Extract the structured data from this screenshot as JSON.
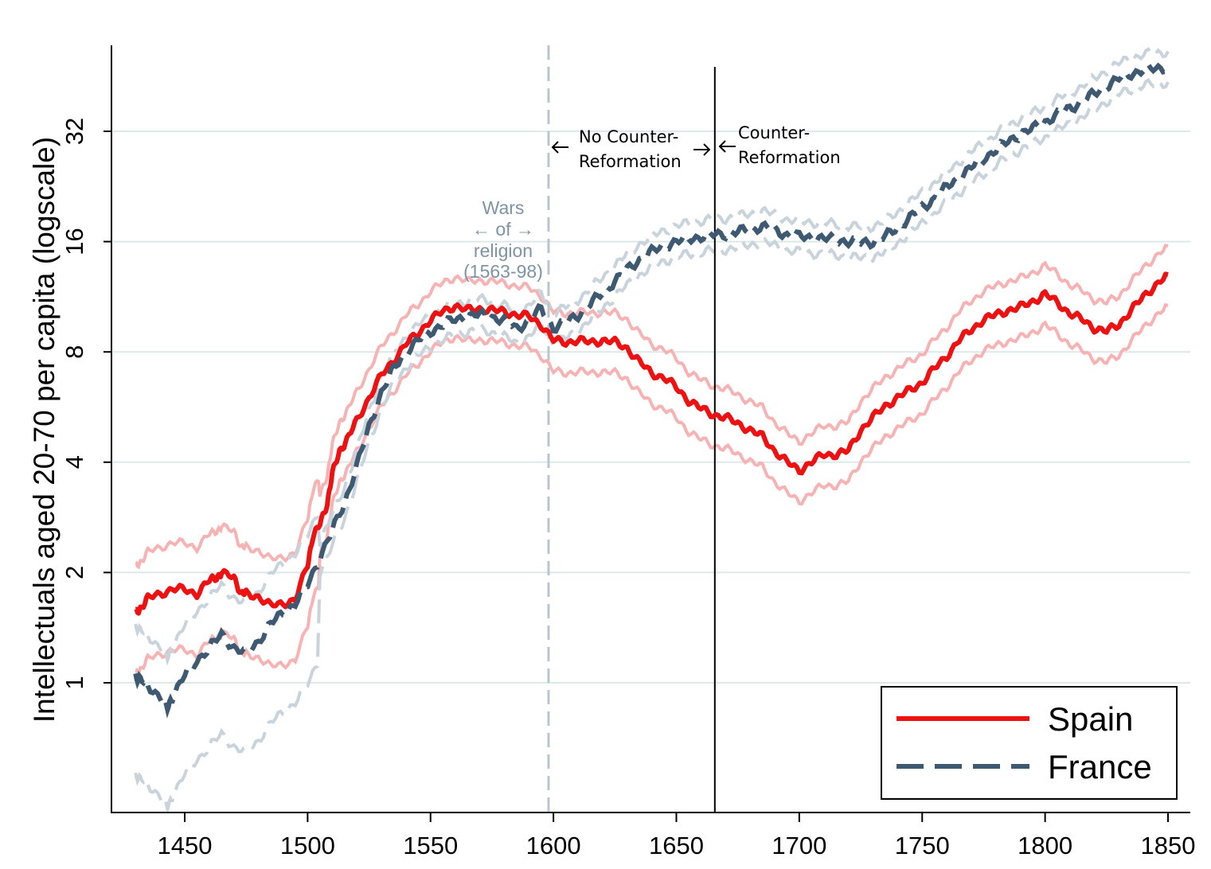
{
  "chart_data": {
    "type": "line",
    "title": "",
    "xlabel": "",
    "ylabel": "Intellectuals aged 20-70 per capita (logscale)",
    "y_scale": "log2",
    "xlim": [
      1420,
      1860
    ],
    "ylim": [
      0.4,
      56
    ],
    "x_ticks": [
      1450,
      1500,
      1550,
      1600,
      1650,
      1700,
      1750,
      1800,
      1850
    ],
    "x_tick_labels": [
      "1450",
      "1500",
      "1550",
      "1600",
      "1650",
      "1700",
      "1750",
      "1800",
      "1850"
    ],
    "y_ticks": [
      1,
      2,
      4,
      8,
      16,
      32
    ],
    "y_tick_labels": [
      "1",
      "2",
      "4",
      "8",
      "16",
      "32"
    ],
    "grid": true,
    "legend_position": "bottom-right",
    "colors": {
      "spain": "#ee1111",
      "spain_ci": "#f7b3b3",
      "france": "#3e5a72",
      "france_ci": "#c9d3dc",
      "wars_line": "#b9c5cf",
      "grid": "#dde8e8"
    },
    "series": [
      {
        "name": "Spain",
        "style": "solid",
        "x": [
          1430,
          1432,
          1435,
          1440,
          1445,
          1450,
          1455,
          1460,
          1463,
          1465,
          1470,
          1473,
          1475,
          1480,
          1485,
          1490,
          1495,
          1500,
          1502,
          1505,
          1508,
          1510,
          1513,
          1516,
          1520,
          1525,
          1530,
          1535,
          1540,
          1545,
          1550,
          1555,
          1560,
          1565,
          1570,
          1575,
          1580,
          1585,
          1590,
          1595,
          1600,
          1605,
          1610,
          1615,
          1620,
          1625,
          1630,
          1635,
          1640,
          1645,
          1650,
          1655,
          1660,
          1665,
          1670,
          1675,
          1680,
          1685,
          1690,
          1695,
          1700,
          1705,
          1710,
          1715,
          1720,
          1725,
          1730,
          1735,
          1740,
          1745,
          1750,
          1755,
          1760,
          1765,
          1770,
          1775,
          1780,
          1785,
          1790,
          1795,
          1800,
          1805,
          1810,
          1815,
          1820,
          1825,
          1830,
          1835,
          1840,
          1845,
          1850
        ],
        "values": [
          1.55,
          1.6,
          1.7,
          1.75,
          1.8,
          1.8,
          1.75,
          1.9,
          1.95,
          1.98,
          1.95,
          1.75,
          1.75,
          1.72,
          1.62,
          1.65,
          1.68,
          2.1,
          2.5,
          2.7,
          3.1,
          3.7,
          4.3,
          4.6,
          5.2,
          6.0,
          6.9,
          7.6,
          8.4,
          9.0,
          9.8,
          10.3,
          10.7,
          10.4,
          10.5,
          10.4,
          10.3,
          10.1,
          10.0,
          9.5,
          8.6,
          8.5,
          8.6,
          8.5,
          8.6,
          8.5,
          8.2,
          7.5,
          7.0,
          6.8,
          6.4,
          5.9,
          5.6,
          5.4,
          5.3,
          5.1,
          4.9,
          4.7,
          4.3,
          4.0,
          3.8,
          4.0,
          4.2,
          4.2,
          4.3,
          4.9,
          5.3,
          5.7,
          6.0,
          6.3,
          6.6,
          7.2,
          7.8,
          8.6,
          9.2,
          9.8,
          10.1,
          10.4,
          10.6,
          11.0,
          11.5,
          10.9,
          10.2,
          9.8,
          9.3,
          9.1,
          9.5,
          10.4,
          11.3,
          12.2,
          13.0
        ]
      },
      {
        "name": "France",
        "style": "dashed",
        "x": [
          1430,
          1432,
          1435,
          1440,
          1443,
          1445,
          1450,
          1455,
          1460,
          1465,
          1470,
          1475,
          1480,
          1485,
          1490,
          1495,
          1500,
          1505,
          1510,
          1515,
          1520,
          1525,
          1530,
          1535,
          1540,
          1545,
          1550,
          1555,
          1560,
          1565,
          1570,
          1575,
          1580,
          1585,
          1590,
          1595,
          1600,
          1605,
          1610,
          1615,
          1620,
          1625,
          1630,
          1635,
          1640,
          1645,
          1650,
          1655,
          1660,
          1665,
          1670,
          1675,
          1680,
          1685,
          1690,
          1695,
          1700,
          1705,
          1710,
          1715,
          1720,
          1725,
          1730,
          1735,
          1740,
          1745,
          1750,
          1755,
          1760,
          1765,
          1770,
          1775,
          1780,
          1785,
          1790,
          1795,
          1800,
          1805,
          1810,
          1815,
          1820,
          1825,
          1830,
          1835,
          1840,
          1845,
          1850
        ],
        "values": [
          1.05,
          1.02,
          0.98,
          0.92,
          0.85,
          0.92,
          1.05,
          1.15,
          1.25,
          1.35,
          1.25,
          1.2,
          1.3,
          1.45,
          1.55,
          1.65,
          1.85,
          2.2,
          2.6,
          3.1,
          3.9,
          5.0,
          6.2,
          7.2,
          8.0,
          8.6,
          9.1,
          9.5,
          9.8,
          10.0,
          10.1,
          10.0,
          9.7,
          9.3,
          9.7,
          10.5,
          9.3,
          9.6,
          10.1,
          10.8,
          11.6,
          12.5,
          13.4,
          14.3,
          15.0,
          15.6,
          16.0,
          16.3,
          16.5,
          16.7,
          16.8,
          17.0,
          17.3,
          17.6,
          17.2,
          16.7,
          16.5,
          16.4,
          16.3,
          16.2,
          16.0,
          15.9,
          16.0,
          16.5,
          17.5,
          18.6,
          19.8,
          21.0,
          22.5,
          24.0,
          25.5,
          27.0,
          28.5,
          30.0,
          31.5,
          32.5,
          34.0,
          35.5,
          37.0,
          38.5,
          40.5,
          42.5,
          44.5,
          46.0,
          47.0,
          47.5,
          48.0
        ]
      }
    ],
    "annotations": {
      "wars_line_x": 1598,
      "counter_reformation_x": 1665,
      "wars_label": [
        "Wars",
        "← of →",
        "religion",
        "(1563-98)"
      ],
      "no_counter_label": [
        "No Counter-",
        "Reformation"
      ],
      "counter_label": [
        "Counter-",
        "Reformation"
      ]
    },
    "legend": [
      {
        "label": "Spain",
        "style": "solid"
      },
      {
        "label": "France",
        "style": "dashed"
      }
    ]
  }
}
